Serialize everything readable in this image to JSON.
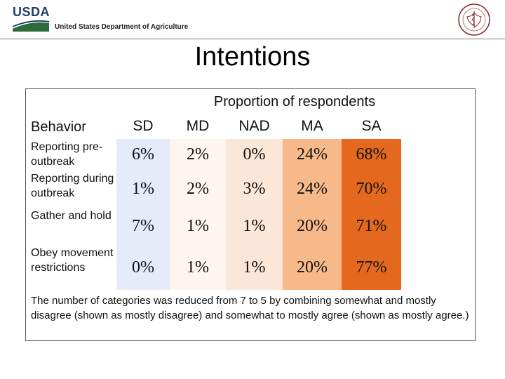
{
  "header": {
    "logo_text": "USDA",
    "department": "United States Department of Agriculture"
  },
  "slide": {
    "title": "Intentions",
    "subtitle": "Proportion of respondents"
  },
  "table": {
    "behavior_header": "Behavior",
    "columns": [
      "SD",
      "MD",
      "NAD",
      "MA",
      "SA"
    ],
    "column_colors": [
      "#e6ebfa",
      "#fdf5ee",
      "#fbe7d7",
      "#f7b98a",
      "#e4691e"
    ],
    "rows": [
      {
        "label": "Reporting pre-outbreak",
        "values": [
          "6%",
          "2%",
          "0%",
          "24%",
          "68%"
        ]
      },
      {
        "label": "Reporting during outbreak",
        "values": [
          "1%",
          "2%",
          "3%",
          "24%",
          "70%"
        ]
      },
      {
        "label": "Gather and hold",
        "values": [
          "7%",
          "1%",
          "1%",
          "20%",
          "71%"
        ]
      },
      {
        "label": "Obey movement restrictions",
        "values": [
          "0%",
          "1%",
          "1%",
          "20%",
          "77%"
        ]
      }
    ]
  },
  "footnote": "The number of categories was reduced from 7 to 5 by combining somewhat and mostly disagree (shown as mostly disagree) and somewhat to mostly agree (shown as mostly agree.)"
}
